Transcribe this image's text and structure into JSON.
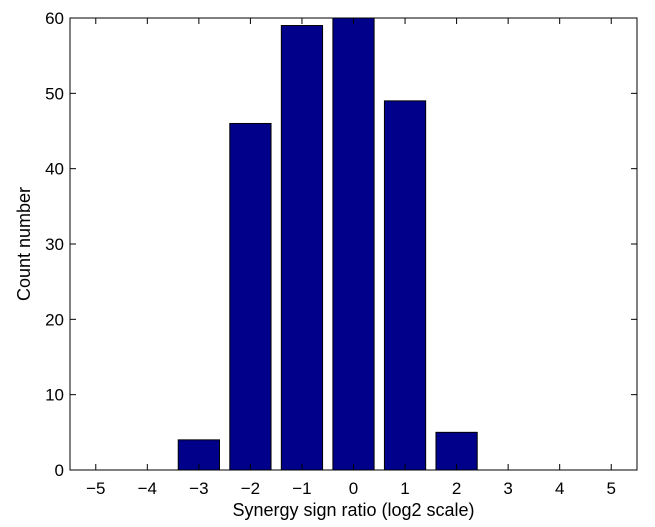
{
  "chart_data": {
    "type": "bar",
    "x": [
      -5,
      -4,
      -3,
      -2,
      -1,
      0,
      1,
      2,
      3,
      4,
      5
    ],
    "values": [
      0,
      0,
      4,
      46,
      59,
      60,
      49,
      5,
      0,
      0,
      0
    ],
    "x_tick_labels": [
      "−5",
      "−4",
      "−3",
      "−2",
      "−1",
      "0",
      "1",
      "2",
      "3",
      "4",
      "5"
    ],
    "y_ticks": [
      0,
      10,
      20,
      30,
      40,
      50,
      60
    ],
    "y_tick_labels": [
      "0",
      "10",
      "20",
      "30",
      "40",
      "50",
      "60"
    ],
    "xlabel": "Synergy sign ratio (log2 scale)",
    "ylabel": "Count number",
    "xlim": [
      -5.5,
      5.5
    ],
    "ylim": [
      0,
      60
    ],
    "grid": false,
    "legend": "none",
    "bar_color": "#00008b",
    "axis_color": "#000000"
  }
}
